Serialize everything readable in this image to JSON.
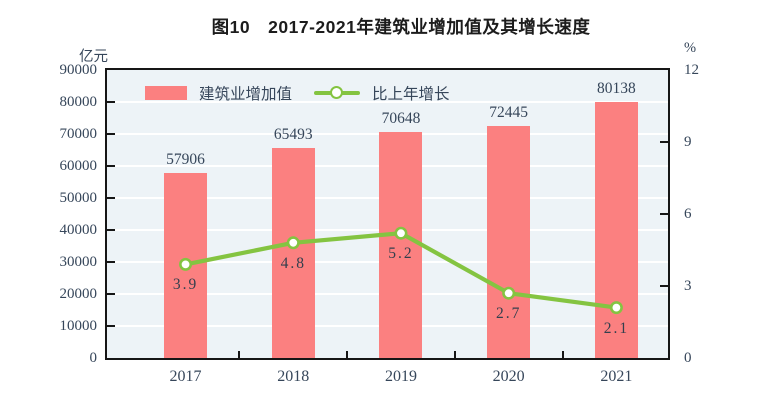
{
  "title": "图10　2017-2021年建筑业增加值及其增长速度",
  "left_axis": {
    "unit": "亿元",
    "min": 0,
    "max": 90000,
    "step": 10000
  },
  "right_axis": {
    "unit": "%",
    "min": 0,
    "max": 12,
    "step": 3
  },
  "legend": {
    "bar_label": "建筑业增加值",
    "line_label": "比上年增长"
  },
  "colors": {
    "bar": "#fb8080",
    "line": "#84c441",
    "marker_fill": "#ffffff",
    "plot_bg": "#edf3f7",
    "gridline": "#ffffff",
    "axis_border": "#161616",
    "label_text": "#36465a",
    "title_text": "#1c1c1c"
  },
  "chart_data": {
    "type": "bar",
    "subtype": "combo-bar-line",
    "title": "图10　2017-2021年建筑业增加值及其增长速度",
    "categories": [
      "2017",
      "2018",
      "2019",
      "2020",
      "2021"
    ],
    "series": [
      {
        "name": "建筑业增加值",
        "type": "bar",
        "axis": "left",
        "unit": "亿元",
        "values": [
          57906,
          65493,
          70648,
          72445,
          80138
        ]
      },
      {
        "name": "比上年增长",
        "type": "line",
        "axis": "right",
        "unit": "%",
        "values": [
          3.9,
          4.8,
          5.2,
          2.7,
          2.1
        ]
      }
    ],
    "xlabel": "",
    "ylabel_left": "亿元",
    "ylabel_right": "%",
    "ylim_left": [
      0,
      90000
    ],
    "ylim_right": [
      0,
      12
    ],
    "left_ticks": [
      90000,
      80000,
      70000,
      60000,
      50000,
      40000,
      30000,
      20000,
      10000,
      0
    ],
    "right_ticks": [
      12,
      9,
      6,
      3,
      0
    ],
    "grid": true,
    "legend_position": "top-inside"
  }
}
